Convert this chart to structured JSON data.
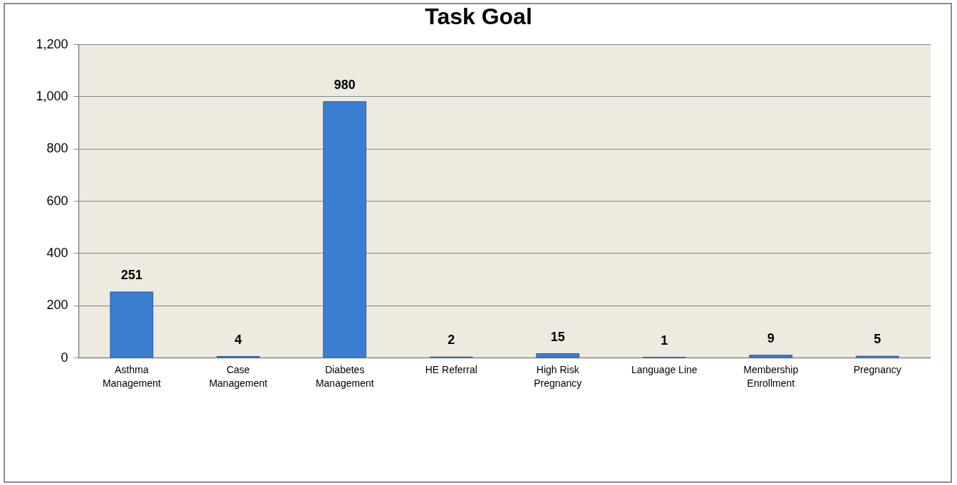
{
  "chart_data": {
    "type": "bar",
    "title": "Task Goal",
    "categories": [
      "Asthma Management",
      "Case Management",
      "Diabetes Management",
      "HE Referral",
      "High Risk Pregnancy",
      "Language Line",
      "Membership Enrollment",
      "Pregnancy"
    ],
    "values": [
      251,
      4,
      980,
      2,
      15,
      1,
      9,
      5
    ],
    "color": "#3b7dd0",
    "ylim": [
      0,
      1200
    ],
    "yticks": [
      0,
      200,
      400,
      600,
      800,
      {
        "value": 1000,
        "label": "1,000"
      },
      {
        "value": 1200,
        "label": "1,200"
      }
    ],
    "grid": "y",
    "data_labels": true
  }
}
